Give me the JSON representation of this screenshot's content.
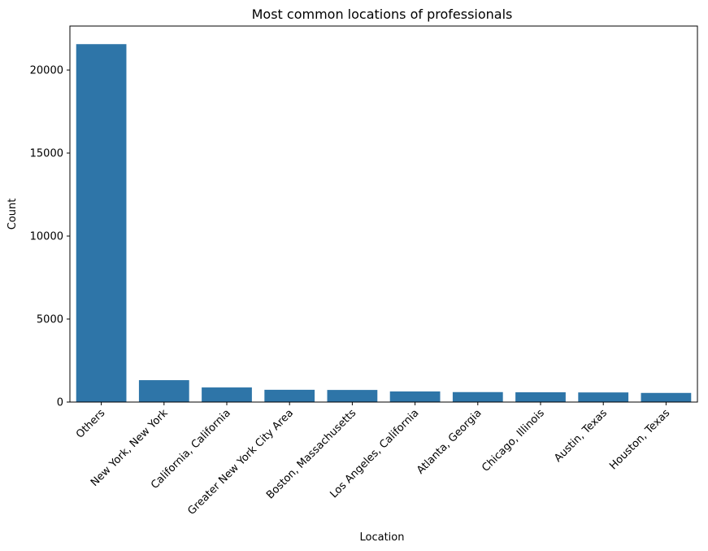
{
  "chart_data": {
    "type": "bar",
    "title": "Most common locations of professionals",
    "xlabel": "Location",
    "ylabel": "Count",
    "categories": [
      "Others",
      "New York, New York",
      "California, California",
      "Greater New York City Area",
      "Boston, Massachusetts",
      "Los Angeles, California",
      "Atlanta, Georgia",
      "Chicago, Illinois",
      "Austin, Texas",
      "Houston, Texas"
    ],
    "values": [
      21560,
      1320,
      880,
      740,
      730,
      640,
      600,
      590,
      580,
      550
    ],
    "ylim": [
      0,
      22650
    ],
    "yticks": [
      0,
      5000,
      10000,
      15000,
      20000
    ],
    "grid": false,
    "bar_color": "#2e75a8",
    "x_tick_rotation_degrees": 45
  }
}
